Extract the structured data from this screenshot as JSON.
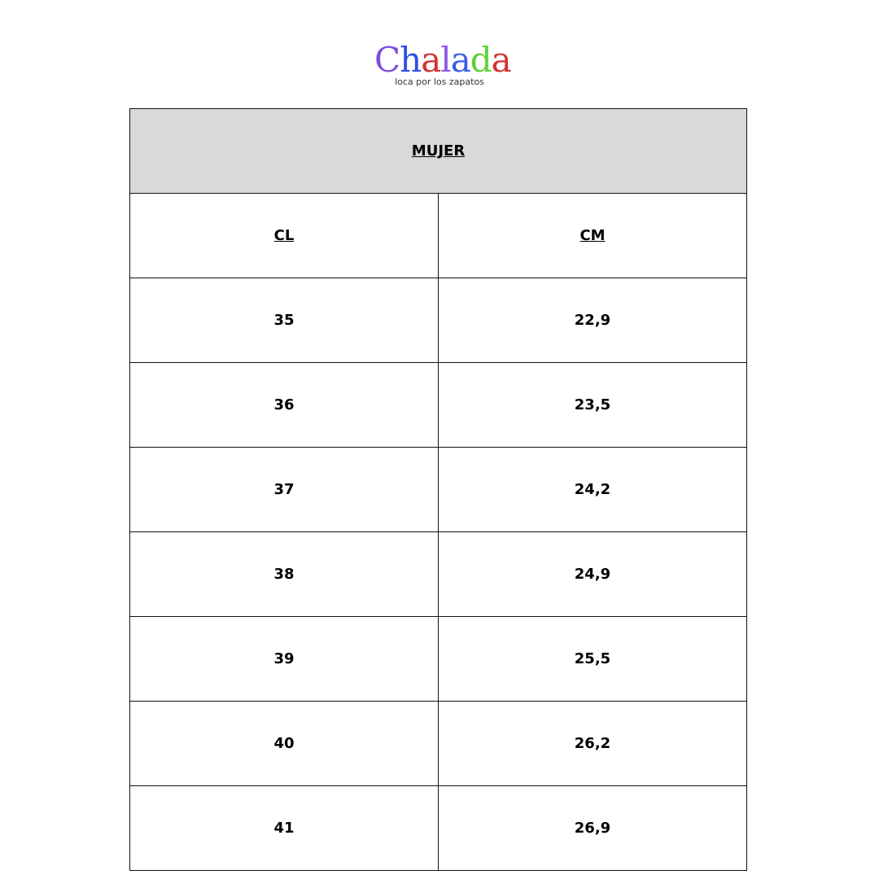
{
  "logo": {
    "letters": [
      {
        "char": "C",
        "color": "#7b4fe0"
      },
      {
        "char": "h",
        "color": "#2f4fe0"
      },
      {
        "char": "a",
        "color": "#d43030"
      },
      {
        "char": "l",
        "color": "#8a5ae6"
      },
      {
        "char": "a",
        "color": "#3a5ee6"
      },
      {
        "char": "d",
        "color": "#5ed13a"
      },
      {
        "char": "a",
        "color": "#d43030"
      }
    ],
    "text": "Chalada",
    "tagline": "loca por los zapatos"
  },
  "table": {
    "title": "MUJER",
    "headers": [
      "CL",
      "CM"
    ],
    "rows": [
      [
        "35",
        "22,9"
      ],
      [
        "36",
        "23,5"
      ],
      [
        "37",
        "24,2"
      ],
      [
        "38",
        "24,9"
      ],
      [
        "39",
        "25,5"
      ],
      [
        "40",
        "26,2"
      ],
      [
        "41",
        "26,9"
      ]
    ]
  }
}
